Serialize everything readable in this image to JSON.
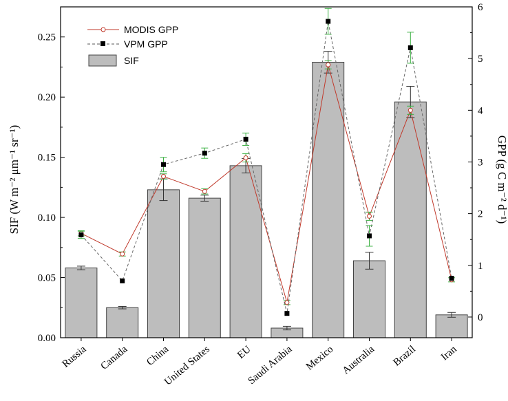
{
  "chart_data": {
    "type": "bar",
    "categories": [
      "Russia",
      "Canada",
      "China",
      "United States",
      "EU",
      "Saudi Arabia",
      "Mexico",
      "Australia",
      "Brazil",
      "Iran"
    ],
    "series": [
      {
        "name": "SIF",
        "kind": "bar",
        "axis": "left",
        "values": [
          0.058,
          0.025,
          0.123,
          0.116,
          0.143,
          0.008,
          0.229,
          0.064,
          0.196,
          0.019
        ],
        "errors": [
          0.0015,
          0.001,
          0.009,
          0.0025,
          0.006,
          0.0015,
          0.009,
          0.007,
          0.013,
          0.002
        ],
        "color": "#bdbdbd"
      },
      {
        "name": "MODIS GPP",
        "kind": "line",
        "axis": "right",
        "values": [
          1.62,
          1.22,
          2.72,
          2.43,
          3.08,
          0.28,
          4.88,
          1.95,
          4.0,
          0.72
        ],
        "errors": [
          0.05,
          0.04,
          0.05,
          0.05,
          0.08,
          0.04,
          0.08,
          0.08,
          0.08,
          0.04
        ],
        "color": "#c0392b"
      },
      {
        "name": "VPM GPP",
        "kind": "line",
        "axis": "right",
        "values": [
          1.59,
          0.7,
          2.95,
          3.17,
          3.44,
          0.07,
          5.72,
          1.57,
          5.21,
          0.75
        ],
        "errors": [
          0.07,
          0.0,
          0.14,
          0.1,
          0.12,
          0.0,
          0.25,
          0.2,
          0.3,
          0.0
        ],
        "color": "#000000"
      }
    ],
    "ylabel": "SIF (W m⁻² μm⁻¹ sr⁻¹)",
    "ylim": [
      0,
      0.275
    ],
    "yticks": [
      "0.00",
      "0.05",
      "0.10",
      "0.15",
      "0.20",
      "0.25"
    ],
    "y2label": "GPP (g C m⁻² d⁻¹)",
    "y2lim": [
      -0.4,
      6.0
    ],
    "y2ticks": [
      "0",
      "1",
      "2",
      "3",
      "4",
      "5",
      "6"
    ],
    "errorbar_color": "#3cb043",
    "grid": false,
    "legend_position": "top-left"
  }
}
